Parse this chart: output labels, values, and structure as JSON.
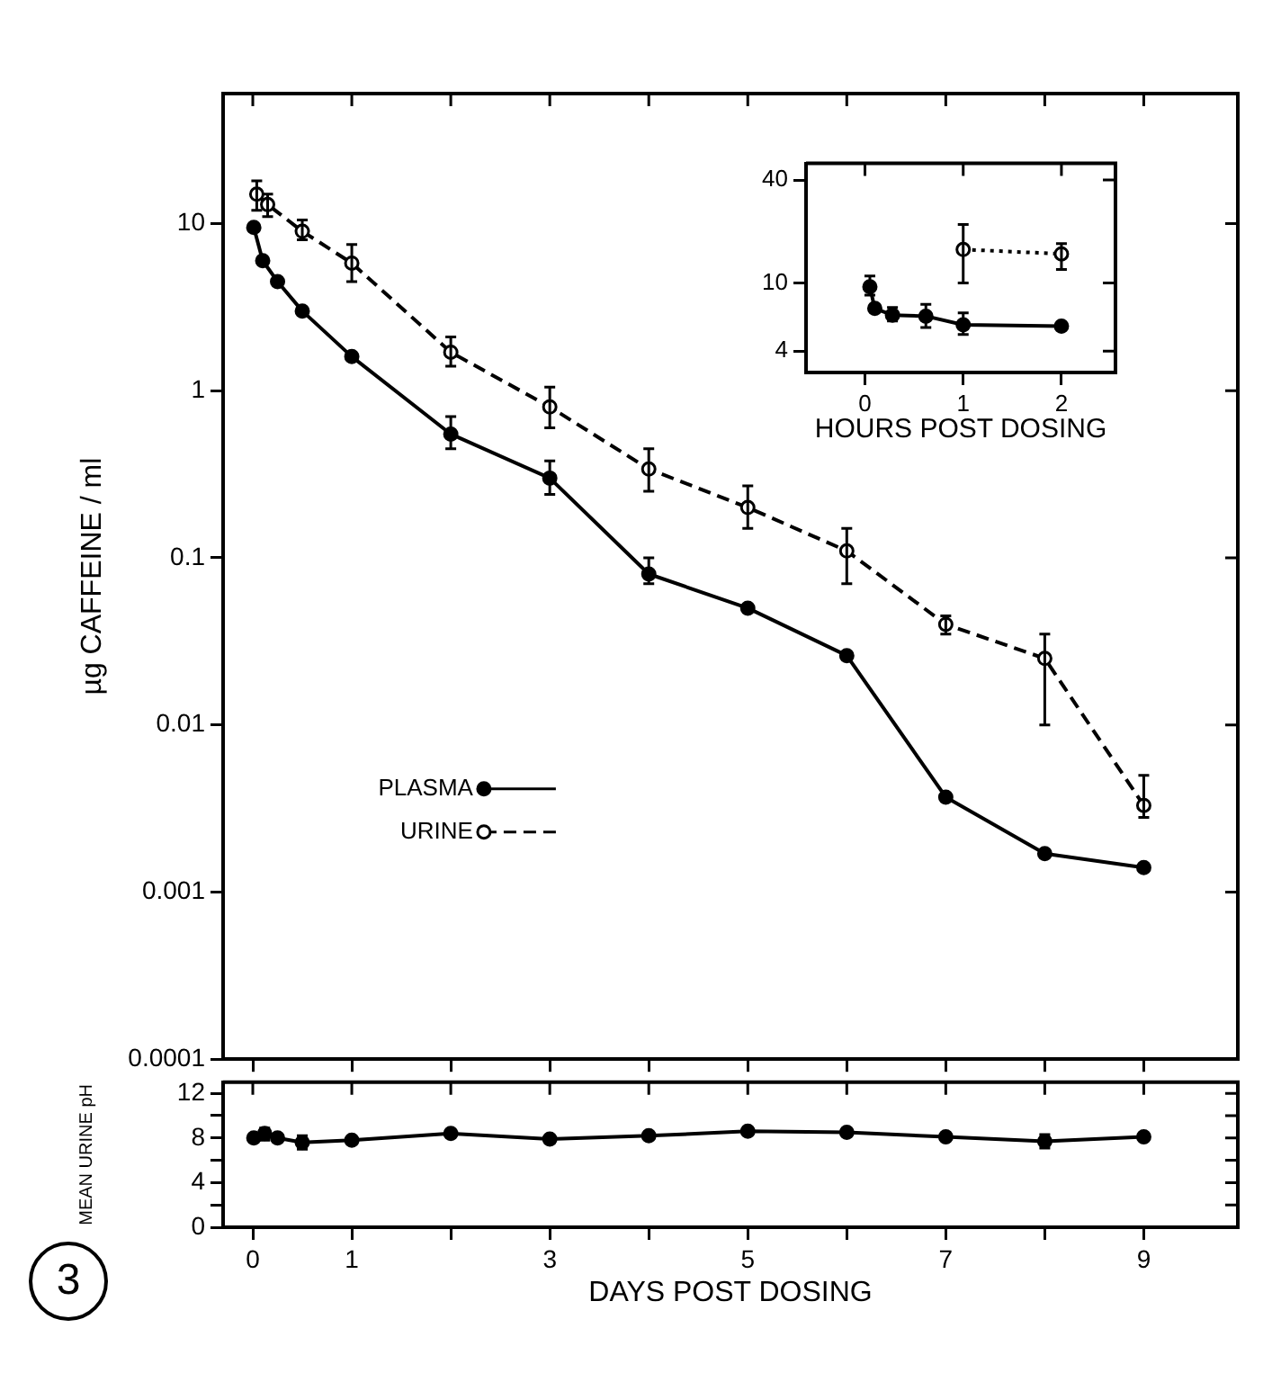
{
  "chart_data": [
    {
      "type": "line",
      "ylabel": "µg CAFFEINE / ml",
      "log": "y",
      "xlim": [
        -0.3,
        9.95
      ],
      "xticks": [
        0,
        1,
        2,
        3,
        4,
        5,
        6,
        7,
        8,
        9
      ],
      "ylim": [
        0.0001,
        60
      ],
      "yticks": [
        0.0001,
        0.001,
        0.01,
        0.1,
        1,
        10
      ],
      "tick_labels": "y",
      "grid": false,
      "legend": "left",
      "series": [
        {
          "name": "PLASMA",
          "color": "#000000",
          "marker": "circle",
          "line_style": "solid",
          "x": [
            0.01,
            0.1,
            0.25,
            0.5,
            1,
            2,
            3,
            4,
            5,
            6,
            7,
            8,
            9
          ],
          "values": [
            9.5,
            6,
            4.5,
            3,
            1.6,
            0.55,
            0.3,
            0.08,
            0.05,
            0.026,
            0.0037,
            0.0017,
            0.0014
          ],
          "errors": [
            null,
            null,
            null,
            null,
            null,
            [
              0.45,
              0.7
            ],
            [
              0.24,
              0.38
            ],
            [
              0.07,
              0.1
            ],
            null,
            null,
            null,
            null,
            null
          ]
        },
        {
          "name": "URINE",
          "color": "#000000",
          "marker": "circle",
          "line_style": "dashed",
          "x": [
            0.04,
            0.15,
            0.5,
            1,
            2,
            3,
            4,
            5,
            6,
            7,
            8,
            9
          ],
          "values": [
            15,
            13,
            9,
            5.8,
            1.7,
            0.8,
            0.34,
            0.2,
            0.11,
            0.04,
            0.025,
            0.0033
          ],
          "errors": [
            [
              12,
              18
            ],
            [
              11,
              15
            ],
            [
              8,
              10.5
            ],
            [
              4.5,
              7.5
            ],
            [
              1.4,
              2.1
            ],
            [
              0.6,
              1.05
            ],
            [
              0.25,
              0.45
            ],
            [
              0.15,
              0.27
            ],
            [
              0.07,
              0.15
            ],
            [
              0.035,
              0.045
            ],
            [
              0.01,
              0.035
            ],
            [
              0.0028,
              0.005
            ]
          ]
        }
      ]
    },
    {
      "type": "line",
      "xlabel": "HOURS POST DOSING",
      "log": "y",
      "xlim": [
        -0.6,
        2.55
      ],
      "xticks": [
        0,
        1,
        2
      ],
      "ylim": [
        3,
        50
      ],
      "yticks": [
        4,
        10,
        40
      ],
      "grid": false,
      "series": [
        {
          "color": "#000000",
          "marker": "circle",
          "line_style": "solid",
          "x": [
            0.05,
            0.1,
            0.28,
            0.62,
            1,
            2
          ],
          "values": [
            9.5,
            7.1,
            6.5,
            6.4,
            5.7,
            5.6
          ],
          "errors": [
            [
              8.5,
              11
            ],
            null,
            [
              6,
              7.2
            ],
            [
              5.5,
              7.5
            ],
            [
              5,
              6.7
            ],
            null
          ]
        },
        {
          "color": "#000000",
          "marker": "circle",
          "line_style": "dotted",
          "x": [
            1,
            2
          ],
          "values": [
            15.7,
            14.8
          ],
          "errors": [
            [
              10,
              22
            ],
            [
              12,
              17
            ]
          ]
        }
      ]
    },
    {
      "type": "line",
      "xlabel": "DAYS POST DOSING",
      "ylabel": "MEAN URINE pH",
      "xlim": [
        -0.3,
        9.95
      ],
      "xticks": [
        0,
        1,
        {
          "value": 2,
          "label": null
        },
        3,
        {
          "value": 4,
          "label": null
        },
        5,
        {
          "value": 6,
          "label": null
        },
        7,
        {
          "value": 8,
          "label": null
        },
        9
      ],
      "ylim": [
        0,
        13
      ],
      "yticks": [
        0,
        {
          "value": 2,
          "label": null
        },
        4,
        {
          "value": 6,
          "label": null
        },
        8,
        {
          "value": 10,
          "label": null
        },
        12
      ],
      "grid": false,
      "annotations": [
        "3"
      ],
      "series": [
        {
          "color": "#000000",
          "marker": "circle",
          "line_style": "solid",
          "x": [
            0.01,
            0.12,
            0.25,
            0.5,
            1,
            2,
            3,
            4,
            5,
            6,
            7,
            8,
            9
          ],
          "values": [
            8,
            8.4,
            8,
            7.6,
            7.8,
            8.4,
            7.9,
            8.2,
            8.6,
            8.5,
            8.1,
            7.7,
            8.1
          ],
          "errors": [
            null,
            [
              7.8,
              8.9
            ],
            null,
            [
              7,
              8.2
            ],
            null,
            null,
            null,
            null,
            null,
            null,
            null,
            [
              7.1,
              8.3
            ],
            null
          ]
        }
      ]
    }
  ]
}
